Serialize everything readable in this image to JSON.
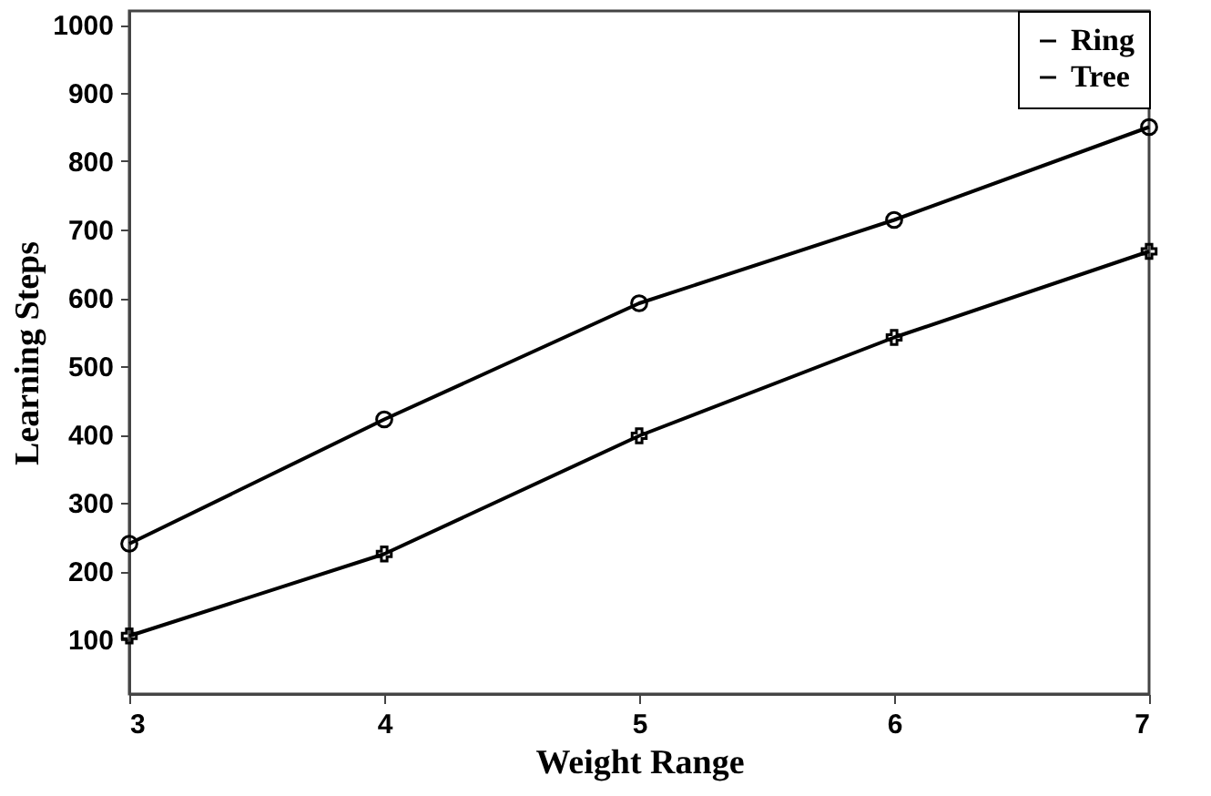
{
  "chart_data": {
    "type": "line",
    "xlabel": "Weight Range",
    "ylabel": "Learning Steps",
    "x": [
      3,
      4,
      5,
      6,
      7
    ],
    "series": [
      {
        "name": "Ring",
        "color": "#000000",
        "marker": "circle",
        "values": [
          240,
          422,
          592,
          714,
          850
        ]
      },
      {
        "name": "Tree",
        "color": "#000000",
        "marker": "cross",
        "values": [
          105,
          225,
          398,
          542,
          668
        ]
      }
    ],
    "xlim": [
      3,
      7
    ],
    "xticks": [
      3,
      4,
      5,
      6,
      7
    ],
    "ylim": [
      20,
      1020
    ],
    "yticks": [
      100,
      200,
      300,
      400,
      500,
      600,
      700,
      800,
      900,
      1000
    ],
    "grid": false,
    "legend": "top right",
    "line_style": "solid"
  }
}
